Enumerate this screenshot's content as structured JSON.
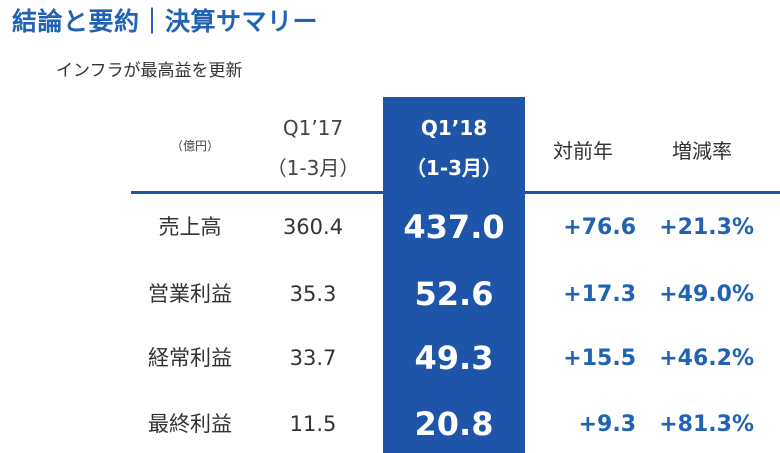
{
  "title": "結論と要約｜決算サマリー",
  "subtitle": "インフラが最高益を更新",
  "table": {
    "unit": "（億円）",
    "prev_period": "Q1’17",
    "prev_range": "（1-3月）",
    "curr_period": "Q1’18",
    "curr_range": "（1-3月）",
    "yoy_label": "対前年",
    "rate_label": "増減率",
    "rows": [
      {
        "label": "売上高",
        "prev": "360.4",
        "curr": "437.0",
        "diff": "+76.6",
        "rate": "+21.3%"
      },
      {
        "label": "営業利益",
        "prev": "35.3",
        "curr": "52.6",
        "diff": "+17.3",
        "rate": "+49.0%"
      },
      {
        "label": "経常利益",
        "prev": "33.7",
        "curr": "49.3",
        "diff": "+15.5",
        "rate": "+46.2%"
      },
      {
        "label": "最終利益",
        "prev": "11.5",
        "curr": "20.8",
        "diff": "+9.3",
        "rate": "+81.3%"
      }
    ]
  },
  "colors": {
    "accent": "#2162b3",
    "highlight": "#1f55a8",
    "text": "#333333"
  }
}
